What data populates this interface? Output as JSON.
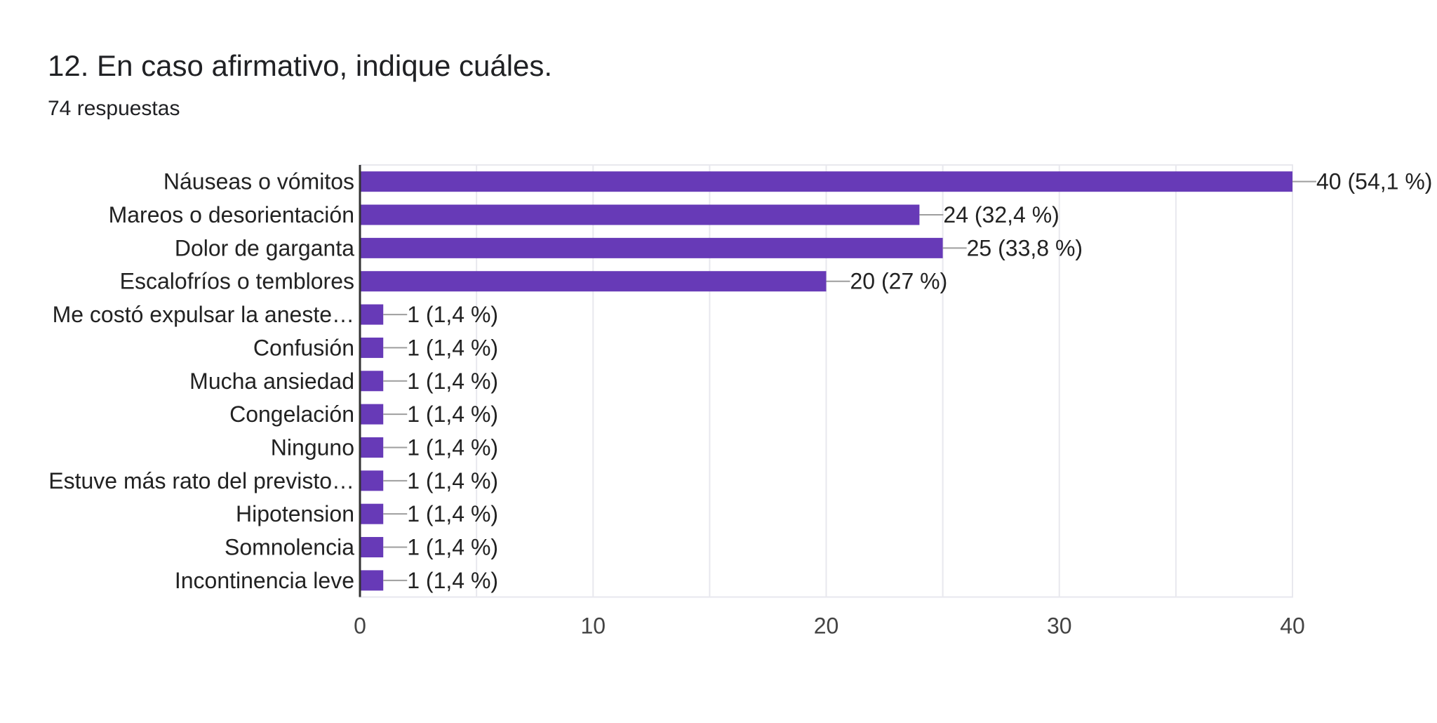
{
  "question": {
    "title": "12. En caso afirmativo, indique cuáles.",
    "responses": "74 respuestas"
  },
  "colors": {
    "bar": "#673ab7",
    "grid": "#e8e8ee",
    "axis": "#333333",
    "text": "#222222",
    "tick": "#444444"
  },
  "chart_data": {
    "type": "bar",
    "orientation": "horizontal",
    "title": "12. En caso afirmativo, indique cuáles.",
    "categories": [
      "Náuseas o vómitos",
      "Mareos o desorientación",
      "Dolor de garganta",
      "Escalofríos o temblores",
      "Me costó expulsar la aneste…",
      "Confusión",
      "Mucha ansiedad",
      "Congelación",
      "Ninguno",
      "Estuve más rato del previsto…",
      "Hipotension",
      "Somnolencia",
      "Incontinencia leve"
    ],
    "values": [
      40,
      24,
      25,
      20,
      1,
      1,
      1,
      1,
      1,
      1,
      1,
      1,
      1
    ],
    "labels": [
      "40 (54,1 %)",
      "24 (32,4 %)",
      "25 (33,8 %)",
      "20 (27 %)",
      "1 (1,4 %)",
      "1 (1,4 %)",
      "1 (1,4 %)",
      "1 (1,4 %)",
      "1 (1,4 %)",
      "1 (1,4 %)",
      "1 (1,4 %)",
      "1 (1,4 %)",
      "1 (1,4 %)"
    ],
    "xlim": [
      0,
      40
    ],
    "xticks": [
      0,
      10,
      20,
      30,
      40
    ],
    "minor_gridlines": [
      5,
      15,
      25,
      35
    ],
    "xlabel": "",
    "ylabel": "",
    "legend": "none"
  }
}
